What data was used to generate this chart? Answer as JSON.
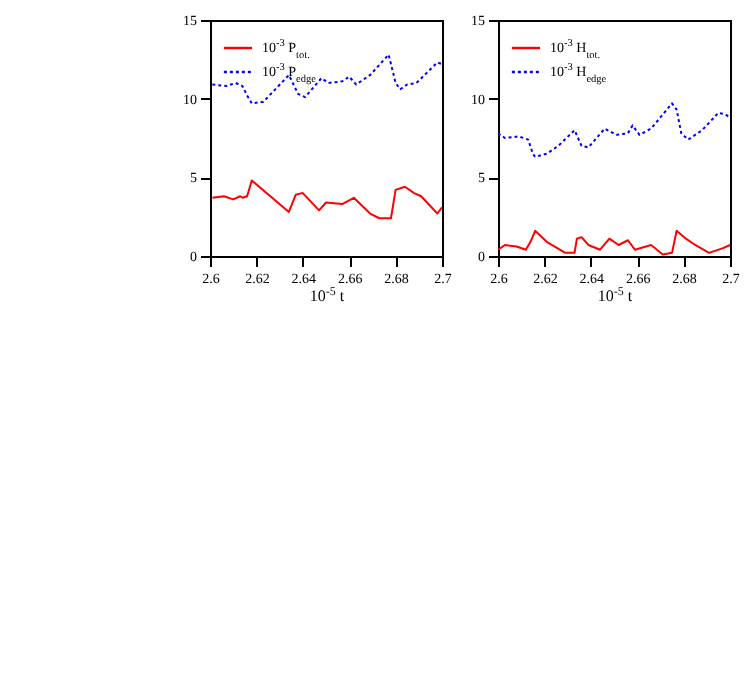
{
  "chart_data": [
    {
      "type": "line",
      "xlabel": "10$^{-5}$ t",
      "xlim": [
        2.6,
        2.7
      ],
      "xticks": [
        2.6,
        2.62,
        2.64,
        2.66,
        2.68,
        2.7
      ],
      "ylim": [
        0,
        15
      ],
      "yticks": [
        0,
        5,
        10,
        15
      ],
      "grid": false,
      "legend": "top left",
      "series": [
        {
          "name": "10$^{-3}$ P$_{tot.}$",
          "color": "#ff0000",
          "line_style": "solid",
          "x": [
            2.601,
            2.606,
            2.61,
            2.613,
            2.614,
            2.616,
            2.618,
            2.634,
            2.637,
            2.64,
            2.647,
            2.65,
            2.657,
            2.662,
            2.669,
            2.673,
            2.678,
            2.68,
            2.684,
            2.688,
            2.691,
            2.698,
            2.7
          ],
          "values": [
            3.7,
            3.8,
            3.6,
            3.8,
            3.7,
            3.8,
            4.8,
            2.8,
            3.9,
            4.0,
            2.9,
            3.4,
            3.3,
            3.7,
            2.7,
            2.4,
            2.4,
            4.2,
            4.4,
            4.0,
            3.8,
            2.7,
            3.1
          ]
        },
        {
          "name": "10$^{-3}$ P$_{edge}$",
          "color": "#0000ff",
          "line_style": "dotted",
          "x": [
            2.601,
            2.607,
            2.611,
            2.614,
            2.616,
            2.618,
            2.623,
            2.634,
            2.638,
            2.641,
            2.648,
            2.651,
            2.657,
            2.66,
            2.663,
            2.669,
            2.677,
            2.68,
            2.682,
            2.685,
            2.689,
            2.698,
            2.7
          ],
          "values": [
            10.9,
            10.8,
            11.0,
            10.8,
            10.2,
            9.7,
            9.8,
            11.5,
            10.3,
            10.1,
            11.3,
            11.0,
            11.1,
            11.4,
            10.9,
            11.5,
            12.8,
            11.0,
            10.6,
            10.9,
            11.0,
            12.3,
            12.2
          ]
        }
      ]
    },
    {
      "type": "line",
      "xlabel": "10$^{-5}$ t",
      "xlim": [
        2.6,
        2.7
      ],
      "xticks": [
        2.6,
        2.62,
        2.64,
        2.66,
        2.68,
        2.7
      ],
      "ylim": [
        0,
        15
      ],
      "yticks": [
        0,
        5,
        10,
        15
      ],
      "grid": false,
      "legend": "top left",
      "series": [
        {
          "name": "10$^{-3}$ H$_{tot.}$",
          "color": "#ff0000",
          "line_style": "solid",
          "x": [
            2.6,
            2.603,
            2.608,
            2.612,
            2.614,
            2.616,
            2.621,
            2.629,
            2.633,
            2.634,
            2.636,
            2.639,
            2.644,
            2.648,
            2.652,
            2.656,
            2.659,
            2.666,
            2.671,
            2.675,
            2.677,
            2.681,
            2.685,
            2.691,
            2.697,
            2.7
          ],
          "values": [
            0.4,
            0.7,
            0.6,
            0.4,
            0.9,
            1.6,
            0.9,
            0.2,
            0.2,
            1.1,
            1.2,
            0.7,
            0.4,
            1.1,
            0.7,
            1.0,
            0.4,
            0.7,
            0.1,
            0.2,
            1.6,
            1.1,
            0.7,
            0.2,
            0.5,
            0.7
          ]
        },
        {
          "name": "10$^{-3}$ H$_{edge}$",
          "color": "#0000ff",
          "line_style": "dotted",
          "x": [
            2.6,
            2.603,
            2.609,
            2.613,
            2.615,
            2.616,
            2.621,
            2.626,
            2.633,
            2.636,
            2.639,
            2.646,
            2.651,
            2.656,
            2.658,
            2.661,
            2.666,
            2.675,
            2.677,
            2.679,
            2.682,
            2.688,
            2.695,
            2.698,
            2.7
          ],
          "values": [
            7.8,
            7.5,
            7.6,
            7.4,
            6.5,
            6.3,
            6.5,
            7.0,
            8.0,
            7.0,
            6.9,
            8.1,
            7.7,
            7.8,
            8.3,
            7.7,
            8.1,
            9.7,
            9.3,
            7.8,
            7.4,
            8.0,
            9.1,
            9.0,
            8.8
          ]
        }
      ]
    }
  ]
}
